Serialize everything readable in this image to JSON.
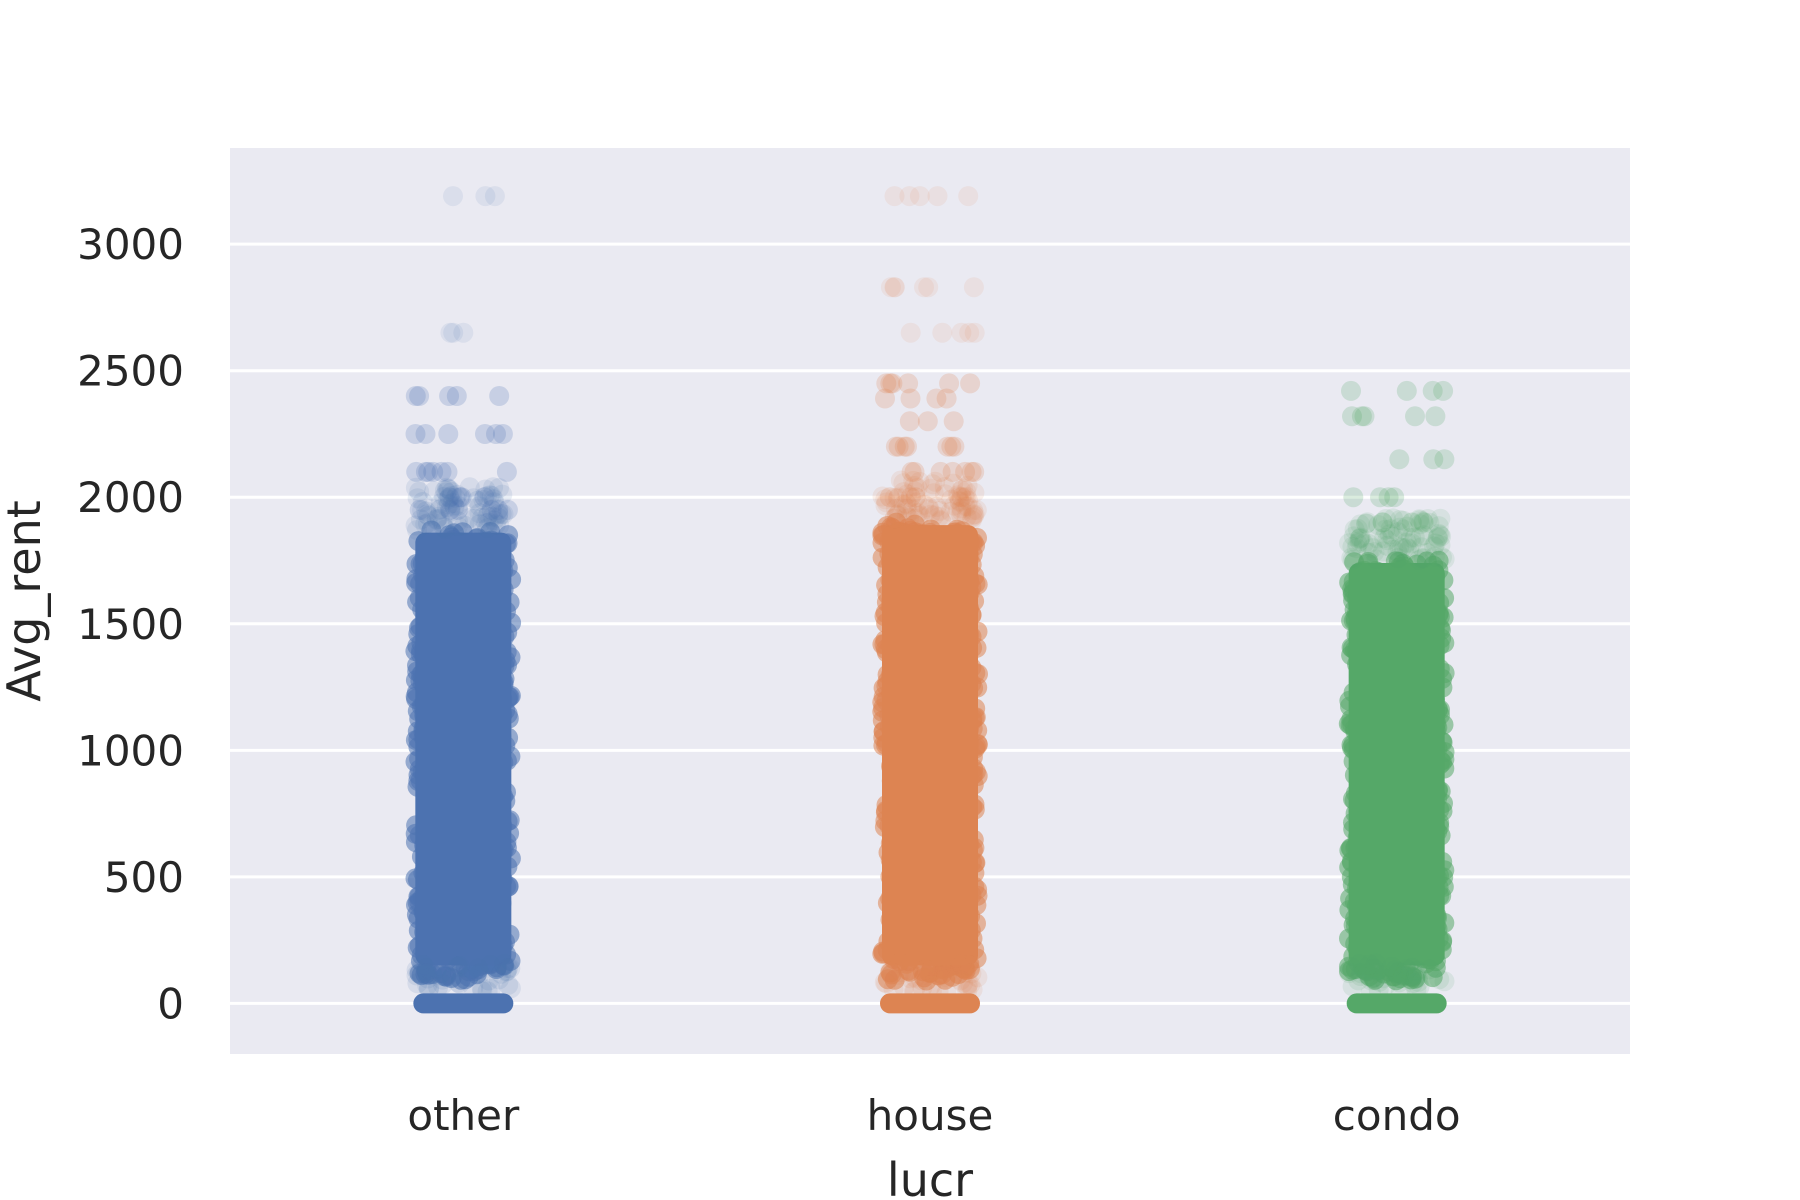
{
  "chart_data": {
    "type": "scatter",
    "subtype": "strip",
    "title": "",
    "xlabel": "lucr",
    "ylabel": "Avg_rent",
    "ylim": [
      -200,
      3380
    ],
    "yticks": [
      0,
      500,
      1000,
      1500,
      2000,
      2500,
      3000
    ],
    "yticklabels": [
      "0",
      "500",
      "1000",
      "1500",
      "2000",
      "2500",
      "3000"
    ],
    "grid": true,
    "background_color": "#eaeaf2",
    "categories": [
      "other",
      "house",
      "condo"
    ],
    "series": [
      {
        "category": "other",
        "color": "#4c72b0",
        "dense_range": [
          0,
          1870
        ],
        "zero_cluster": true,
        "sparse_values": [
          1950,
          2000,
          2100,
          2250,
          2400,
          2650,
          3190
        ]
      },
      {
        "category": "house",
        "color": "#dd8452",
        "dense_range": [
          0,
          1900
        ],
        "zero_cluster": true,
        "sparse_values": [
          2000,
          2100,
          2200,
          2300,
          2390,
          2450,
          2650,
          2830,
          3190
        ]
      },
      {
        "category": "condo",
        "color": "#55a868",
        "dense_range": [
          0,
          1750
        ],
        "zero_cluster": true,
        "sparse_values": [
          1900,
          2000,
          2150,
          2320,
          2420
        ]
      }
    ]
  }
}
